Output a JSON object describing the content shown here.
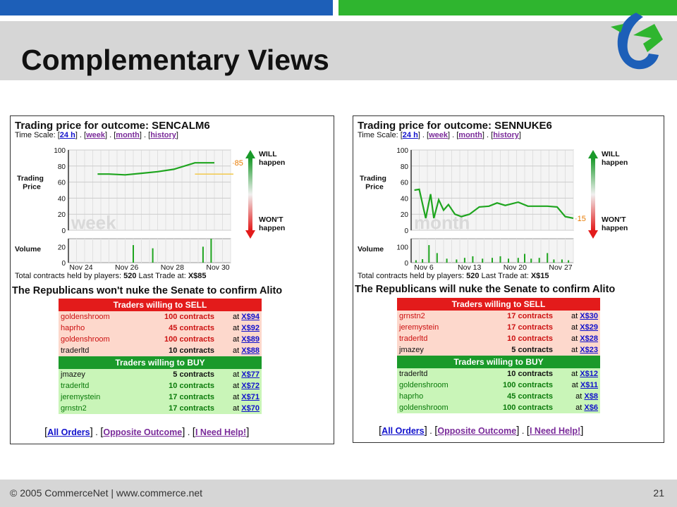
{
  "slide": {
    "title": "Complementary Views",
    "footer": "© 2005 CommerceNet | www.commerce.net",
    "page_number": "21",
    "colors": {
      "blue_bar": "#1d5fb8",
      "green_bar": "#2fb52f",
      "band": "#d6d6d6"
    },
    "logo_icon": "commercenet-logo-icon"
  },
  "panels": [
    {
      "id": "left",
      "title": "Trading price for outcome: SENCALM6",
      "time_scale": {
        "label": "Time Scale:",
        "options": [
          "24 h",
          "week",
          "month",
          "history"
        ]
      },
      "chart_data": {
        "type": "line",
        "watermark": "week",
        "ylabel": "Trading Price",
        "ylim": [
          0,
          100
        ],
        "yticks": [
          0,
          20,
          40,
          60,
          80,
          100
        ],
        "x": [
          0.18,
          0.25,
          0.35,
          0.45,
          0.55,
          0.65,
          0.78,
          0.9
        ],
        "values": [
          70,
          70,
          69,
          71,
          73,
          76,
          84,
          84
        ],
        "last_trade_label": "85",
        "reference_line": 70,
        "will_label": [
          "WILL",
          "happen"
        ],
        "wont_label": [
          "WON'T",
          "happen"
        ],
        "volume_label": "Volume",
        "volume_yticks": [
          0,
          20
        ],
        "volume_bars": [
          [
            0.4,
            22
          ],
          [
            0.52,
            18
          ],
          [
            0.83,
            20
          ],
          [
            0.88,
            38
          ]
        ],
        "x_tick_labels": [
          "Nov 24",
          "Nov 26",
          "Nov 28",
          "Nov 30"
        ]
      },
      "summary": {
        "label_held": "Total contracts held by players:",
        "held": "520",
        "label_last": "Last Trade at:",
        "last": "X$85"
      },
      "question": "The Republicans won't nuke the Senate to confirm Alito",
      "sell_header": "Traders willing to SELL",
      "buy_header": "Traders willing to BUY",
      "sell": [
        {
          "name": "goldenshroom",
          "qty": "100",
          "unit": "contracts",
          "at": "at",
          "price": "X$94",
          "dark": false
        },
        {
          "name": "haprho",
          "qty": "45",
          "unit": "contracts",
          "at": "at",
          "price": "X$92",
          "dark": false
        },
        {
          "name": "goldenshroom",
          "qty": "100",
          "unit": "contracts",
          "at": "at",
          "price": "X$89",
          "dark": false
        },
        {
          "name": "traderltd",
          "qty": "10",
          "unit": "contracts",
          "at": "at",
          "price": "X$88",
          "dark": true
        }
      ],
      "buy": [
        {
          "name": "jmazey",
          "qty": "5",
          "unit": "contracts",
          "at": "at",
          "price": "X$77",
          "dark": true
        },
        {
          "name": "traderltd",
          "qty": "10",
          "unit": "contracts",
          "at": "at",
          "price": "X$72",
          "dark": false
        },
        {
          "name": "jeremystein",
          "qty": "17",
          "unit": "contracts",
          "at": "at",
          "price": "X$71",
          "dark": false
        },
        {
          "name": "grnstn2",
          "qty": "17",
          "unit": "contracts",
          "at": "at",
          "price": "X$70",
          "dark": false
        }
      ],
      "links": {
        "all_orders": "All Orders",
        "opposite": "Opposite Outcome",
        "help": "I Need Help!"
      }
    },
    {
      "id": "right",
      "title": "Trading price for outcome: SENNUKE6",
      "time_scale": {
        "label": "Time Scale:",
        "options": [
          "24 h",
          "week",
          "month",
          "history"
        ]
      },
      "chart_data": {
        "type": "line",
        "watermark": "month",
        "ylabel": "Trading Price",
        "ylim": [
          0,
          100
        ],
        "yticks": [
          0,
          20,
          40,
          60,
          80,
          100
        ],
        "x": [
          0.02,
          0.05,
          0.09,
          0.12,
          0.14,
          0.17,
          0.2,
          0.23,
          0.27,
          0.31,
          0.36,
          0.42,
          0.48,
          0.53,
          0.58,
          0.62,
          0.66,
          0.72,
          0.78,
          0.84,
          0.9,
          0.95,
          1.0
        ],
        "values": [
          50,
          51,
          15,
          45,
          15,
          38,
          25,
          32,
          20,
          17,
          20,
          29,
          30,
          34,
          31,
          33,
          35,
          30,
          30,
          30,
          29,
          17,
          15
        ],
        "last_trade_label": "15",
        "will_label": [
          "WILL",
          "happen"
        ],
        "wont_label": [
          "WON'T",
          "happen"
        ],
        "volume_label": "Volume",
        "volume_yticks": [
          0,
          100
        ],
        "volume_bars": [
          [
            0.03,
            15
          ],
          [
            0.07,
            22
          ],
          [
            0.11,
            110
          ],
          [
            0.16,
            60
          ],
          [
            0.22,
            25
          ],
          [
            0.28,
            20
          ],
          [
            0.33,
            30
          ],
          [
            0.38,
            40
          ],
          [
            0.44,
            25
          ],
          [
            0.5,
            30
          ],
          [
            0.55,
            40
          ],
          [
            0.6,
            25
          ],
          [
            0.66,
            30
          ],
          [
            0.7,
            55
          ],
          [
            0.74,
            25
          ],
          [
            0.79,
            30
          ],
          [
            0.84,
            60
          ],
          [
            0.88,
            20
          ],
          [
            0.93,
            20
          ],
          [
            0.97,
            15
          ]
        ],
        "x_tick_labels": [
          "Nov 6",
          "Nov 13",
          "Nov 20",
          "Nov 27"
        ]
      },
      "summary": {
        "label_held": "Total contracts held by players:",
        "held": "520",
        "label_last": "Last Trade at:",
        "last": "X$15"
      },
      "question": "The Republicans will nuke the Senate to confirm Alito",
      "sell_header": "Traders willing to SELL",
      "buy_header": "Traders willing to BUY",
      "sell": [
        {
          "name": "grnstn2",
          "qty": "17",
          "unit": "contracts",
          "at": "at",
          "price": "X$30",
          "dark": false
        },
        {
          "name": "jeremystein",
          "qty": "17",
          "unit": "contracts",
          "at": "at",
          "price": "X$29",
          "dark": false
        },
        {
          "name": "traderltd",
          "qty": "10",
          "unit": "contracts",
          "at": "at",
          "price": "X$28",
          "dark": false
        },
        {
          "name": "jmazey",
          "qty": "5",
          "unit": "contracts",
          "at": "at",
          "price": "X$23",
          "dark": true
        }
      ],
      "buy": [
        {
          "name": "traderltd",
          "qty": "10",
          "unit": "contracts",
          "at": "at",
          "price": "X$12",
          "dark": true
        },
        {
          "name": "goldenshroom",
          "qty": "100",
          "unit": "contracts",
          "at": "at",
          "price": "X$11",
          "dark": false
        },
        {
          "name": "haprho",
          "qty": "45",
          "unit": "contracts",
          "at": "at",
          "price": "X$8",
          "dark": false
        },
        {
          "name": "goldenshroom",
          "qty": "100",
          "unit": "contracts",
          "at": "at",
          "price": "X$6",
          "dark": false
        }
      ],
      "links": {
        "all_orders": "All Orders",
        "opposite": "Opposite Outcome",
        "help": "I Need Help!"
      }
    }
  ]
}
